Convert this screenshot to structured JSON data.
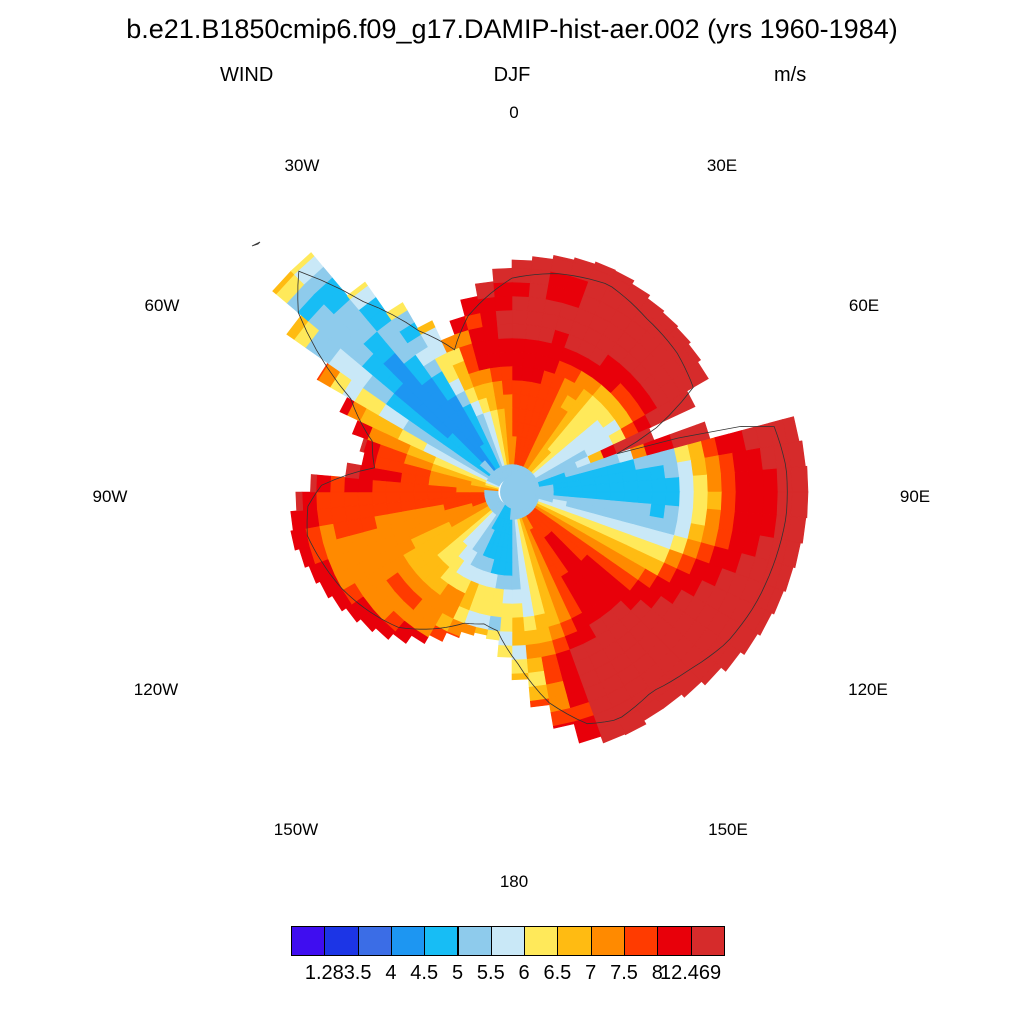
{
  "header": {
    "title": "b.e21.B1850cmip6.f09_g17.DAMIP-hist-aer.002 (yrs 1960-1984)",
    "variable": "WIND",
    "season": "DJF",
    "units": "m/s"
  },
  "map": {
    "projection": "south-polar-stereographic",
    "longitude_labels": [
      "0",
      "30E",
      "60E",
      "90E",
      "120E",
      "150E",
      "180",
      "150W",
      "120W",
      "90W",
      "60W",
      "30W"
    ]
  },
  "colorbar": {
    "colors": [
      "#3f0df0",
      "#1c35e6",
      "#3b6de6",
      "#1d96f2",
      "#17bdf5",
      "#8ecbec",
      "#c9e8f7",
      "#ffe95a",
      "#ffbb12",
      "#ff8a00",
      "#ff3b00",
      "#e8000a",
      "#d62b2b"
    ],
    "labels": [
      "1.28",
      "3.5",
      "4",
      "4.5",
      "5",
      "5.5",
      "6",
      "6.5",
      "7",
      "7.5",
      "8",
      "12.469"
    ]
  }
}
